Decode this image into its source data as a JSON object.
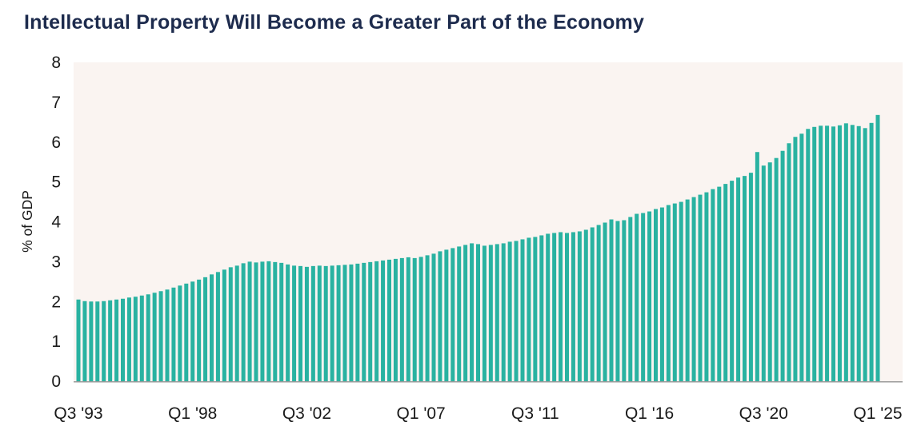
{
  "title": "Intellectual Property Will Become a Greater Part of the Economy",
  "colors": {
    "title": "#1d2b4d",
    "bar": "#29b2a1",
    "plot_background": "#faf4f1",
    "axis_line": "#9b9b9b",
    "tick_text": "#1a1a1a",
    "page_background": "#ffffff"
  },
  "chart_data": {
    "type": "bar",
    "title": "Intellectual Property Will Become a Greater Part of the Economy",
    "xlabel": "",
    "ylabel": "% of GDP",
    "ylim": [
      0,
      8
    ],
    "yticks": [
      0,
      1,
      2,
      3,
      4,
      5,
      6,
      7,
      8
    ],
    "grid": false,
    "legend": false,
    "frequency": "quarterly",
    "x_start": "1993-Q3",
    "x_end": "2025-Q1",
    "xticks": [
      {
        "index": 0,
        "label": "Q3 '93"
      },
      {
        "index": 18,
        "label": "Q1 '98"
      },
      {
        "index": 36,
        "label": "Q3 '02"
      },
      {
        "index": 54,
        "label": "Q1 '07"
      },
      {
        "index": 72,
        "label": "Q3 '11"
      },
      {
        "index": 90,
        "label": "Q1 '16"
      },
      {
        "index": 108,
        "label": "Q3 '20"
      },
      {
        "index": 126,
        "label": "Q1 '25"
      }
    ],
    "values": [
      2.05,
      2.01,
      2.0,
      2.0,
      2.01,
      2.03,
      2.05,
      2.07,
      2.1,
      2.12,
      2.15,
      2.18,
      2.22,
      2.26,
      2.3,
      2.35,
      2.4,
      2.45,
      2.5,
      2.55,
      2.61,
      2.68,
      2.74,
      2.8,
      2.86,
      2.9,
      2.96,
      3.0,
      2.98,
      3.0,
      3.01,
      2.99,
      2.97,
      2.93,
      2.9,
      2.89,
      2.87,
      2.89,
      2.9,
      2.89,
      2.9,
      2.91,
      2.92,
      2.93,
      2.95,
      2.97,
      2.99,
      3.01,
      3.03,
      3.05,
      3.07,
      3.09,
      3.11,
      3.09,
      3.12,
      3.16,
      3.2,
      3.26,
      3.3,
      3.34,
      3.38,
      3.42,
      3.46,
      3.44,
      3.4,
      3.42,
      3.44,
      3.46,
      3.5,
      3.52,
      3.56,
      3.6,
      3.62,
      3.66,
      3.7,
      3.72,
      3.74,
      3.72,
      3.74,
      3.76,
      3.8,
      3.86,
      3.92,
      3.98,
      4.06,
      4.02,
      4.04,
      4.12,
      4.2,
      4.22,
      4.26,
      4.32,
      4.36,
      4.42,
      4.46,
      4.5,
      4.56,
      4.62,
      4.68,
      4.74,
      4.82,
      4.88,
      4.95,
      5.03,
      5.11,
      5.15,
      5.23,
      5.75,
      5.41,
      5.49,
      5.6,
      5.78,
      5.97,
      6.13,
      6.21,
      6.33,
      6.38,
      6.41,
      6.41,
      6.39,
      6.42,
      6.47,
      6.43,
      6.4,
      6.35,
      6.48,
      6.68
    ]
  }
}
